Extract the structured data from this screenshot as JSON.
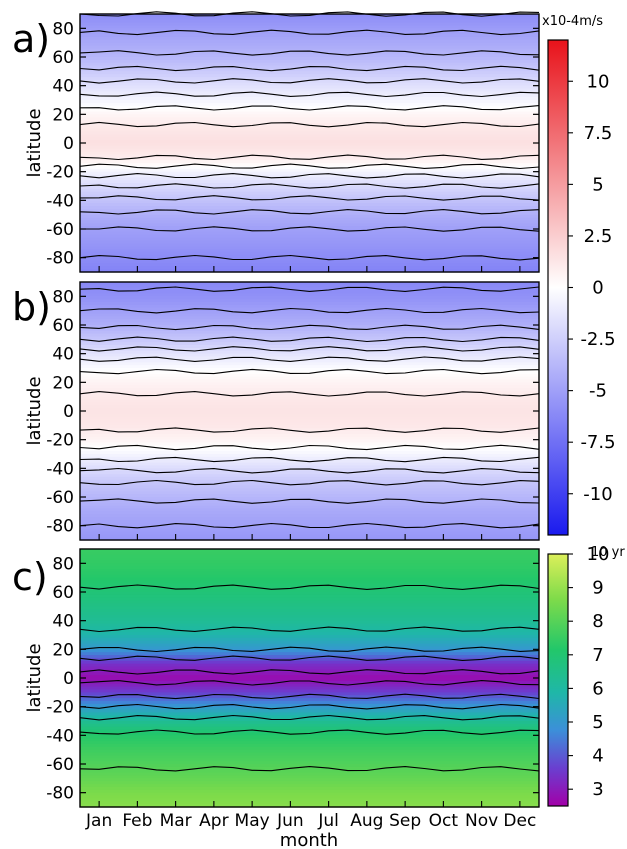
{
  "chart_data": [
    {
      "panel": "a)",
      "type": "heatmap",
      "xlabel": "",
      "ylabel": "latitude",
      "ylim": [
        -90,
        90
      ],
      "yticks": [
        80,
        60,
        40,
        20,
        0,
        -20,
        -40,
        -60,
        -80
      ],
      "x": [
        "Jan",
        "Feb",
        "Mar",
        "Apr",
        "May",
        "Jun",
        "Jul",
        "Aug",
        "Sep",
        "Oct",
        "Nov",
        "Dec"
      ],
      "profile": {
        "lat": [
          -90,
          -80,
          -70,
          -60,
          -50,
          -40,
          -30,
          -20,
          -10,
          0,
          10,
          20,
          30,
          40,
          50,
          60,
          70,
          80,
          90
        ],
        "value": [
          -6.5,
          -6.0,
          -5.5,
          -5.0,
          -4.2,
          -3.2,
          -2.0,
          -0.6,
          1.0,
          1.6,
          1.2,
          0.5,
          -0.6,
          -1.6,
          -2.8,
          -3.8,
          -4.5,
          -5.2,
          -6.0
        ]
      },
      "colorscale": "diverging-blue-white-red"
    },
    {
      "panel": "b)",
      "type": "heatmap",
      "xlabel": "",
      "ylabel": "latitude",
      "ylim": [
        -90,
        90
      ],
      "yticks": [
        80,
        60,
        40,
        20,
        0,
        -20,
        -40,
        -60,
        -80
      ],
      "x": [
        "Jan",
        "Feb",
        "Mar",
        "Apr",
        "May",
        "Jun",
        "Jul",
        "Aug",
        "Sep",
        "Oct",
        "Nov",
        "Dec"
      ],
      "profile": {
        "lat": [
          -90,
          -80,
          -70,
          -60,
          -50,
          -40,
          -30,
          -20,
          -10,
          0,
          10,
          20,
          30,
          40,
          50,
          60,
          70,
          80,
          90
        ],
        "value": [
          -5.5,
          -5.0,
          -4.5,
          -3.8,
          -3.0,
          -1.8,
          -0.5,
          0.6,
          1.2,
          1.4,
          1.1,
          0.6,
          -0.2,
          -1.5,
          -3.0,
          -4.2,
          -5.0,
          -5.8,
          -6.2
        ]
      },
      "colorscale": "diverging-blue-white-red"
    },
    {
      "panel": "c)",
      "type": "heatmap",
      "xlabel": "month",
      "ylabel": "latitude",
      "ylim": [
        -90,
        90
      ],
      "yticks": [
        80,
        60,
        40,
        20,
        0,
        -20,
        -40,
        -60,
        -80
      ],
      "x": [
        "Jan",
        "Feb",
        "Mar",
        "Apr",
        "May",
        "Jun",
        "Jul",
        "Aug",
        "Sep",
        "Oct",
        "Nov",
        "Dec"
      ],
      "profile": {
        "lat": [
          -90,
          -80,
          -70,
          -60,
          -50,
          -40,
          -30,
          -20,
          -10,
          0,
          10,
          20,
          30,
          40,
          50,
          60,
          70,
          80,
          90
        ],
        "value": [
          8.8,
          8.6,
          8.2,
          7.9,
          7.6,
          7.2,
          6.3,
          5.0,
          3.6,
          2.7,
          3.4,
          5.0,
          5.8,
          6.3,
          6.6,
          6.9,
          7.2,
          7.4,
          7.5
        ]
      },
      "colorscale": "purple-blue-green-yellow"
    }
  ],
  "colorbars": {
    "top": {
      "units": "x10-4m/s",
      "range": [
        -12,
        12
      ],
      "ticks": [
        "10",
        "7.5",
        "5",
        "2.5",
        "0",
        "-2.5",
        "-5",
        "-7.5",
        "-10"
      ],
      "tick_values": [
        10,
        7.5,
        5,
        2.5,
        0,
        -2.5,
        -5,
        -7.5,
        -10
      ]
    },
    "bottom": {
      "units": "10 yr",
      "range": [
        2.5,
        10
      ],
      "ticks": [
        "10",
        "9",
        "8",
        "7",
        "6",
        "5",
        "4",
        "3"
      ],
      "tick_values": [
        10,
        9,
        8,
        7,
        6,
        5,
        4,
        3
      ]
    }
  },
  "labels": {
    "a": "a)",
    "b": "b)",
    "c": "c)",
    "ylabel": "latitude",
    "xlabel": "month",
    "months": [
      "Jan",
      "Feb",
      "Mar",
      "Apr",
      "May",
      "Jun",
      "Jul",
      "Aug",
      "Sep",
      "Oct",
      "Nov",
      "Dec"
    ]
  }
}
